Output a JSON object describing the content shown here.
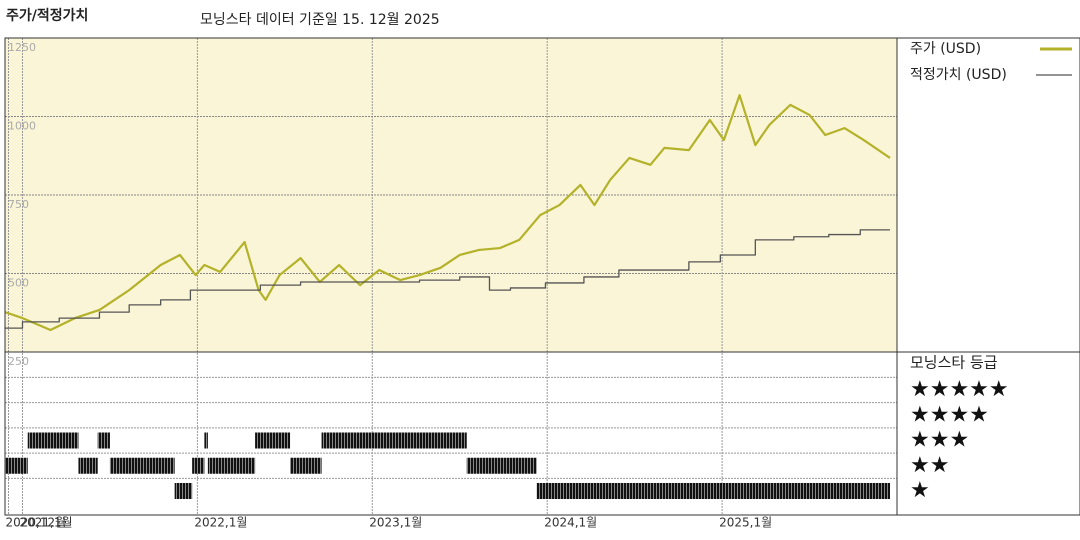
{
  "chart_data": {
    "type": "line",
    "title": "주가/적정가치",
    "subtitle": "모닝스타 데이터 기준일 15. 12월 2025",
    "xlim": [
      2020.9,
      2026.0
    ],
    "xticks": [
      {
        "value": 2020.92,
        "label": "2020,12월"
      },
      {
        "value": 2021,
        "label": "2021,1월"
      },
      {
        "value": 2022,
        "label": "2022,1월"
      },
      {
        "value": 2023,
        "label": "2023,1월"
      },
      {
        "value": 2024,
        "label": "2024,1월"
      },
      {
        "value": 2025,
        "label": "2025,1월"
      }
    ],
    "ylim": [
      250,
      1250
    ],
    "yticks": [
      250,
      500,
      750,
      1000,
      1250
    ],
    "grid": true,
    "series": [
      {
        "name": "주가 (USD)",
        "color": "#b3b22a",
        "x": [
          2020.9,
          2021.0,
          2021.16,
          2021.3,
          2021.44,
          2021.61,
          2021.79,
          2021.9,
          2021.99,
          2022.04,
          2022.13,
          2022.27,
          2022.35,
          2022.39,
          2022.47,
          2022.59,
          2022.7,
          2022.81,
          2022.93,
          2023.04,
          2023.16,
          2023.27,
          2023.39,
          2023.5,
          2023.61,
          2023.73,
          2023.84,
          2023.96,
          2024.07,
          2024.19,
          2024.27,
          2024.36,
          2024.47,
          2024.59,
          2024.67,
          2024.81,
          2024.93,
          2025.01,
          2025.1,
          2025.19,
          2025.27,
          2025.39,
          2025.5,
          2025.59,
          2025.7,
          2025.81,
          2025.96
        ],
        "values": [
          377,
          358,
          320,
          358,
          384,
          447,
          527,
          559,
          495,
          527,
          505,
          600,
          447,
          416,
          495,
          549,
          473,
          527,
          463,
          511,
          479,
          495,
          518,
          559,
          575,
          581,
          607,
          686,
          718,
          782,
          718,
          798,
          868,
          846,
          900,
          893,
          989,
          925,
          1068,
          909,
          973,
          1037,
          1005,
          941,
          963,
          925,
          868
        ]
      },
      {
        "name": "적정가치 (USD)",
        "color": "#555555",
        "step": true,
        "x": [
          2020.9,
          2021.0,
          2021.21,
          2021.44,
          2021.61,
          2021.79,
          2021.96,
          2022.36,
          2022.59,
          2023.27,
          2023.5,
          2023.67,
          2023.79,
          2023.99,
          2024.21,
          2024.41,
          2024.81,
          2024.99,
          2025.19,
          2025.41,
          2025.61,
          2025.79,
          2025.96
        ],
        "values": [
          326,
          346,
          358,
          377,
          400,
          416,
          447,
          463,
          473,
          479,
          489,
          447,
          454,
          470,
          489,
          511,
          537,
          559,
          607,
          617,
          624,
          639,
          639
        ]
      }
    ],
    "ratings_title": "모닝스타 등급",
    "rating_labels": [
      "★★★★★",
      "★★★★",
      "★★★",
      "★★",
      "★"
    ],
    "ratings": {
      "bins": [
        2020.9,
        2021.03,
        2021.32,
        2021.43,
        2021.5,
        2021.87,
        2021.97,
        2022.04,
        2022.06,
        2022.33,
        2022.53,
        2022.71,
        2023.54,
        2023.94,
        2025.96
      ],
      "stars": [
        2,
        3,
        2,
        3,
        2,
        1,
        2,
        3,
        2,
        3,
        2,
        3,
        2,
        1
      ]
    }
  }
}
